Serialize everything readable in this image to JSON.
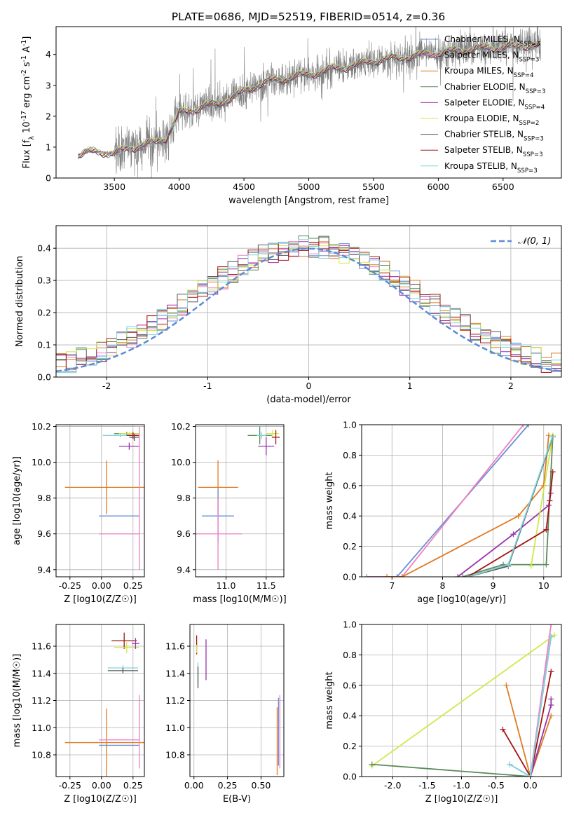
{
  "figure": {
    "title": "PLATE=0686, MJD=52519, FIBERID=0514, z=0.36"
  },
  "colors": {
    "chabrier_miles": "#6a8fd8",
    "salpeter_miles": "#f07fc0",
    "kroupa_miles": "#e07b22",
    "chabrier_elodie": "#5a8a5a",
    "salpeter_elodie": "#9932aa",
    "kroupa_elodie": "#cfe84a",
    "chabrier_stelib": "#555555",
    "salpeter_stelib": "#a31313",
    "kroupa_stelib": "#7fd3dc",
    "data": "#808080",
    "normal_curve": "#5b8bd8"
  },
  "chart_data": [
    {
      "id": "spectrum",
      "type": "line",
      "xlabel": "wavelength [Angstrom, rest frame]",
      "ylabel": "Flux [f_λ 10^-17 erg cm^-2 s^-1 A^-1]",
      "xlim": [
        3050,
        6950
      ],
      "ylim": [
        0,
        4.9
      ],
      "xticks": [
        3500,
        4000,
        4500,
        5000,
        5500,
        6000,
        6500
      ],
      "yticks": [
        0,
        1,
        2,
        3,
        4
      ],
      "grid": false,
      "legend_position": "top-right",
      "legend": [
        "Chabrier MILES, N_SSP=3",
        "Salpeter MILES, N_SSP=3",
        "Kroupa MILES, N_SSP=4",
        "Chabrier ELODIE, N_SSP=3",
        "Salpeter ELODIE, N_SSP=4",
        "Kroupa ELODIE, N_SSP=2",
        "Chabrier STELIB, N_SSP=3",
        "Salpeter STELIB, N_SSP=3",
        "Kroupa STELIB, N_SSP=3"
      ],
      "model_trend": {
        "x": [
          3220,
          3300,
          3400,
          3500,
          3600,
          3700,
          3800,
          3900,
          4000,
          4100,
          4200,
          4300,
          4400,
          4500,
          4600,
          4700,
          4800,
          4900,
          5000,
          5100,
          5200,
          5300,
          5400,
          5500,
          5600,
          5700,
          5800,
          5900,
          6000,
          6100,
          6200,
          6300,
          6400,
          6500,
          6600,
          6700,
          6790
        ],
        "y": [
          0.75,
          0.85,
          0.85,
          0.8,
          0.95,
          1.05,
          1.15,
          1.3,
          2.1,
          2.2,
          2.35,
          2.4,
          2.6,
          2.8,
          3.0,
          3.15,
          3.2,
          3.3,
          3.35,
          3.45,
          3.55,
          3.6,
          3.7,
          3.8,
          3.85,
          3.9,
          3.95,
          4.0,
          4.05,
          4.1,
          4.15,
          4.2,
          4.2,
          4.25,
          4.25,
          4.3,
          4.3
        ]
      }
    },
    {
      "id": "residual-histogram",
      "type": "line",
      "xlabel": "(data-model)/error",
      "ylabel": "Normed distribution",
      "xlim": [
        -2.5,
        2.5
      ],
      "ylim": [
        0,
        0.47
      ],
      "xticks": [
        -2,
        -1,
        0,
        1,
        2
      ],
      "yticks": [
        0.0,
        0.1,
        0.2,
        0.3,
        0.4
      ],
      "grid": true,
      "legend_position": "top-right",
      "legend": [
        "𝒩(0, 1)"
      ],
      "normal_curve": {
        "mean": 0,
        "sigma": 1
      }
    },
    {
      "id": "age-vs-Z",
      "type": "scatter",
      "xlabel": "Z [log10(Z/Z☉)]",
      "ylabel": "age [log10(age/yr)]",
      "xlim": [
        -0.36,
        0.34
      ],
      "ylim": [
        9.36,
        10.21
      ],
      "xticks": [
        -0.25,
        0.0,
        0.25
      ],
      "yticks": [
        9.4,
        9.6,
        9.8,
        10.0,
        10.2
      ],
      "grid": true,
      "points": [
        {
          "model": "kroupa_miles",
          "x": 0.04,
          "xerr": 0.33,
          "y": 9.86,
          "yerr": 0.15
        },
        {
          "model": "chabrier_miles",
          "x": 0.14,
          "xerr": 0.16,
          "y": 9.7,
          "yerr": 0.0
        },
        {
          "model": "salpeter_miles",
          "x": 0.14,
          "xerr": 0.16,
          "y": 9.6,
          "yerr": 0.0
        },
        {
          "model": "chabrier_elodie",
          "x": 0.2,
          "xerr": 0.1,
          "y": 10.16,
          "yerr": 0.01
        },
        {
          "model": "kroupa_elodie",
          "x": 0.22,
          "xerr": 0.08,
          "y": 10.16,
          "yerr": 0.01
        },
        {
          "model": "salpeter_elodie",
          "x": 0.22,
          "xerr": 0.08,
          "y": 10.09,
          "yerr": 0.02
        },
        {
          "model": "kroupa_stelib",
          "x": 0.15,
          "xerr": 0.14,
          "y": 10.15,
          "yerr": 0.01
        },
        {
          "model": "salpeter_stelib",
          "x": 0.25,
          "xerr": 0.05,
          "y": 10.15,
          "yerr": 0.02
        },
        {
          "model": "chabrier_stelib",
          "x": 0.26,
          "xerr": 0.04,
          "y": 10.14,
          "yerr": 0.02
        },
        {
          "model": "salpeter_miles",
          "x": 0.3,
          "xerr": 0.0,
          "y": 9.8,
          "yerr": 0.4
        }
      ]
    },
    {
      "id": "age-vs-mass",
      "type": "scatter",
      "xlabel": "mass [log10(M/M☉)]",
      "ylabel": "",
      "xlim": [
        10.62,
        11.72
      ],
      "ylim": [
        9.36,
        10.21
      ],
      "xticks": [
        11.0,
        11.5
      ],
      "yticks": [
        9.4,
        9.6,
        9.8,
        10.0,
        10.2
      ],
      "grid": true,
      "points": [
        {
          "model": "kroupa_miles",
          "x": 10.9,
          "xerr": 0.25,
          "y": 9.86,
          "yerr": 0.15
        },
        {
          "model": "chabrier_miles",
          "x": 10.9,
          "xerr": 0.2,
          "y": 9.7,
          "yerr": 0.15
        },
        {
          "model": "salpeter_miles",
          "x": 10.9,
          "xerr": 0.3,
          "y": 9.6,
          "yerr": 0.2
        },
        {
          "model": "chabrier_elodie",
          "x": 11.42,
          "xerr": 0.15,
          "y": 10.15,
          "yerr": 0.05
        },
        {
          "model": "kroupa_elodie",
          "x": 11.58,
          "xerr": 0.08,
          "y": 10.16,
          "yerr": 0.02
        },
        {
          "model": "salpeter_elodie",
          "x": 11.5,
          "xerr": 0.1,
          "y": 10.09,
          "yerr": 0.05
        },
        {
          "model": "salpeter_stelib",
          "x": 11.62,
          "xerr": 0.05,
          "y": 10.14,
          "yerr": 0.04
        },
        {
          "model": "kroupa_stelib",
          "x": 11.44,
          "xerr": 0.06,
          "y": 10.15,
          "yerr": 0.02
        }
      ]
    },
    {
      "id": "mass-weight-vs-age",
      "type": "line",
      "xlabel": "age [log10(age/yr)]",
      "ylabel": "mass weight",
      "xlim": [
        6.4,
        10.35
      ],
      "ylim": [
        0,
        1.0
      ],
      "xticks": [
        7,
        8,
        9,
        10
      ],
      "yticks": [
        0.0,
        0.2,
        0.4,
        0.6,
        0.8,
        1.0
      ],
      "grid": true,
      "series": [
        {
          "model": "chabrier_miles",
          "x": [
            6.5,
            7.1,
            9.7
          ],
          "y": [
            0.0,
            0.0,
            1.0
          ]
        },
        {
          "model": "salpeter_miles",
          "x": [
            6.5,
            7.2,
            9.6
          ],
          "y": [
            0.0,
            0.0,
            1.0
          ]
        },
        {
          "model": "kroupa_miles",
          "x": [
            6.9,
            7.2,
            9.5,
            10.0,
            10.1
          ],
          "y": [
            0.0,
            0.0,
            0.4,
            0.6,
            0.93
          ]
        },
        {
          "model": "chabrier_elodie",
          "x": [
            8.4,
            9.2,
            10.05,
            10.18
          ],
          "y": [
            0.0,
            0.08,
            0.08,
            0.92
          ]
        },
        {
          "model": "salpeter_elodie",
          "x": [
            8.3,
            9.4,
            10.1,
            10.14
          ],
          "y": [
            0.0,
            0.28,
            0.47,
            0.55
          ]
        },
        {
          "model": "kroupa_elodie",
          "x": [
            9.75,
            10.18
          ],
          "y": [
            0.07,
            0.93
          ]
        },
        {
          "model": "chabrier_stelib",
          "x": [
            8.5,
            9.3,
            10.18
          ],
          "y": [
            0.0,
            0.07,
            0.92
          ]
        },
        {
          "model": "salpeter_stelib",
          "x": [
            8.5,
            10.05,
            10.12,
            10.18
          ],
          "y": [
            0.0,
            0.31,
            0.5,
            0.69
          ]
        },
        {
          "model": "kroupa_stelib",
          "x": [
            8.5,
            9.3,
            10.17
          ],
          "y": [
            0.0,
            0.08,
            0.92
          ]
        }
      ]
    },
    {
      "id": "mass-vs-Z",
      "type": "scatter",
      "xlabel": "Z [log10(Z/Z☉)]",
      "ylabel": "mass [log10(M/M☉)]",
      "xlim": [
        -0.36,
        0.34
      ],
      "ylim": [
        10.64,
        11.76
      ],
      "xticks": [
        -0.25,
        0.0,
        0.25
      ],
      "yticks": [
        10.8,
        11.0,
        11.2,
        11.4,
        11.6
      ],
      "grid": true,
      "points": [
        {
          "model": "kroupa_miles",
          "x": 0.04,
          "xerr": 0.33,
          "y": 10.89,
          "yerr": 0.25
        },
        {
          "model": "chabrier_miles",
          "x": 0.14,
          "xerr": 0.16,
          "y": 10.87,
          "yerr": 0.0
        },
        {
          "model": "salpeter_miles",
          "x": 0.14,
          "xerr": 0.16,
          "y": 10.91,
          "yerr": 0.0
        },
        {
          "model": "salpeter_stelib",
          "x": 0.18,
          "xerr": 0.1,
          "y": 11.64,
          "yerr": 0.06
        },
        {
          "model": "kroupa_elodie",
          "x": 0.2,
          "xerr": 0.1,
          "y": 11.59,
          "yerr": 0.04
        },
        {
          "model": "kroupa_stelib",
          "x": 0.17,
          "xerr": 0.12,
          "y": 11.44,
          "yerr": 0.02
        },
        {
          "model": "chabrier_stelib",
          "x": 0.17,
          "xerr": 0.12,
          "y": 11.42,
          "yerr": 0.02
        },
        {
          "model": "salpeter_elodie",
          "x": 0.27,
          "xerr": 0.03,
          "y": 11.62,
          "yerr": 0.04
        },
        {
          "model": "salpeter_miles",
          "x": 0.3,
          "xerr": 0.0,
          "y": 10.97,
          "yerr": 0.27
        }
      ]
    },
    {
      "id": "mass-vs-ebv",
      "type": "scatter",
      "xlabel": "E(B-V)",
      "ylabel": "",
      "xlim": [
        -0.03,
        0.67
      ],
      "ylim": [
        10.64,
        11.76
      ],
      "xticks": [
        0.0,
        0.25,
        0.5
      ],
      "yticks": [
        10.8,
        11.0,
        11.2,
        11.4,
        11.6
      ],
      "grid": true,
      "points": [
        {
          "model": "salpeter_stelib",
          "x": 0.02,
          "xerr": 0.0,
          "y": 11.61,
          "yerr": 0.07
        },
        {
          "model": "kroupa_elodie",
          "x": 0.02,
          "xerr": 0.0,
          "y": 11.58,
          "yerr": 0.03
        },
        {
          "model": "kroupa_stelib",
          "x": 0.03,
          "xerr": 0.0,
          "y": 11.4,
          "yerr": 0.08
        },
        {
          "model": "chabrier_stelib",
          "x": 0.03,
          "xerr": 0.0,
          "y": 11.37,
          "yerr": 0.08
        },
        {
          "model": "salpeter_elodie",
          "x": 0.09,
          "xerr": 0.0,
          "y": 11.5,
          "yerr": 0.15
        },
        {
          "model": "kroupa_miles",
          "x": 0.62,
          "xerr": 0.0,
          "y": 10.9,
          "yerr": 0.25
        },
        {
          "model": "chabrier_miles",
          "x": 0.63,
          "xerr": 0.0,
          "y": 10.97,
          "yerr": 0.25
        },
        {
          "model": "salpeter_miles",
          "x": 0.64,
          "xerr": 0.0,
          "y": 10.97,
          "yerr": 0.27
        }
      ]
    },
    {
      "id": "mass-weight-vs-Z",
      "type": "line",
      "xlabel": "Z [log10(Z/Z☉)]",
      "ylabel": "mass weight",
      "xlim": [
        -2.45,
        0.45
      ],
      "ylim": [
        0,
        1.0
      ],
      "xticks": [
        -2.0,
        -1.5,
        -1.0,
        -0.5,
        0.0
      ],
      "yticks": [
        0.0,
        0.2,
        0.4,
        0.6,
        0.8,
        1.0
      ],
      "grid": true,
      "series": [
        {
          "model": "kroupa_elodie",
          "x": [
            -2.3,
            0.35
          ],
          "y": [
            0.07,
            0.93
          ]
        },
        {
          "model": "chabrier_elodie",
          "x": [
            -2.3,
            0.0,
            0.3
          ],
          "y": [
            0.08,
            0.0,
            0.92
          ]
        },
        {
          "model": "kroupa_miles",
          "x": [
            -0.35,
            0.0,
            0.3
          ],
          "y": [
            0.6,
            0.0,
            0.4
          ]
        },
        {
          "model": "salpeter_stelib",
          "x": [
            -0.4,
            0.0,
            0.3
          ],
          "y": [
            0.31,
            0.0,
            0.69
          ]
        },
        {
          "model": "salpeter_elodie",
          "x": [
            0.0,
            0.3,
            0.3
          ],
          "y": [
            0.0,
            0.47,
            0.51
          ]
        },
        {
          "model": "chabrier_miles",
          "x": [
            -0.3,
            0.0,
            0.3
          ],
          "y": [
            0.08,
            0.0,
            0.92
          ]
        },
        {
          "model": "salpeter_miles",
          "x": [
            0.0,
            0.3
          ],
          "y": [
            0.0,
            1.0
          ]
        },
        {
          "model": "kroupa_stelib",
          "x": [
            -0.3,
            0.0,
            0.3
          ],
          "y": [
            0.08,
            0.0,
            0.92
          ]
        }
      ]
    }
  ]
}
